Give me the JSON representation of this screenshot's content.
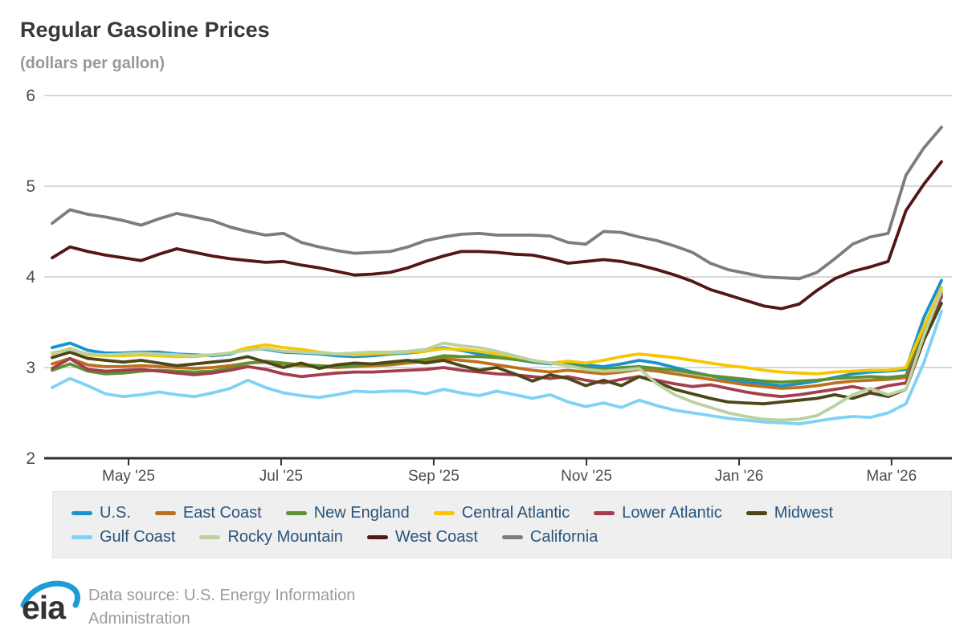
{
  "page": {
    "title": "Regular Gasoline Prices",
    "subtitle": "(dollars per gallon)"
  },
  "colors": {
    "grid": "#cccccc",
    "axis": "#2f2f2f",
    "axis_text": "#4c4c4c",
    "legend_text": "#29537b",
    "legend_bg": "#efefef",
    "logo_blue": "#1e9cd7"
  },
  "chart_data": {
    "type": "line",
    "title": "Regular Gasoline Prices",
    "ylabel": "(dollars per gallon)",
    "ylim": [
      2,
      6
    ],
    "yticks": [
      2,
      3,
      4,
      5,
      6
    ],
    "grid": "horizontal",
    "legend_position": "bottom",
    "x_unit": "weekly, Apr 2025 - Mar 2026",
    "x_ticks": [
      {
        "label": "May '25",
        "pos": 4.29
      },
      {
        "label": "Jul '25",
        "pos": 12.87
      },
      {
        "label": "Sep '25",
        "pos": 21.45
      },
      {
        "label": "Nov '25",
        "pos": 30.04
      },
      {
        "label": "Jan '26",
        "pos": 38.62
      },
      {
        "label": "Mar '26",
        "pos": 47.19
      }
    ],
    "series": [
      {
        "name": "U.S.",
        "color": "#1794ce",
        "values": [
          3.22,
          3.27,
          3.19,
          3.16,
          3.16,
          3.17,
          3.17,
          3.15,
          3.14,
          3.13,
          3.15,
          3.21,
          3.2,
          3.17,
          3.16,
          3.15,
          3.13,
          3.12,
          3.13,
          3.15,
          3.16,
          3.18,
          3.22,
          3.19,
          3.15,
          3.12,
          3.09,
          3.06,
          3.04,
          3.06,
          3.03,
          3.01,
          3.04,
          3.08,
          3.05,
          3.0,
          2.95,
          2.91,
          2.87,
          2.84,
          2.82,
          2.8,
          2.82,
          2.85,
          2.89,
          2.93,
          2.95,
          2.96,
          2.98,
          3.55,
          3.96
        ]
      },
      {
        "name": "East Coast",
        "color": "#bd711f",
        "values": [
          3.04,
          3.1,
          3.03,
          3.01,
          3.01,
          3.02,
          3.01,
          3.0,
          2.99,
          3.0,
          3.02,
          3.05,
          3.06,
          3.04,
          3.02,
          3.01,
          3.0,
          3.01,
          3.02,
          3.03,
          3.05,
          3.07,
          3.1,
          3.08,
          3.06,
          3.03,
          3.0,
          2.97,
          2.95,
          2.97,
          2.95,
          2.93,
          2.95,
          2.98,
          2.96,
          2.93,
          2.9,
          2.87,
          2.84,
          2.81,
          2.79,
          2.77,
          2.78,
          2.8,
          2.83,
          2.85,
          2.86,
          2.87,
          2.89,
          3.38,
          3.8
        ]
      },
      {
        "name": "New England",
        "color": "#5d9232",
        "values": [
          2.97,
          3.04,
          2.96,
          2.93,
          2.94,
          2.96,
          2.97,
          2.96,
          2.95,
          2.96,
          2.99,
          3.05,
          3.07,
          3.05,
          3.03,
          3.02,
          3.01,
          3.02,
          3.04,
          3.05,
          3.07,
          3.09,
          3.13,
          3.12,
          3.12,
          3.11,
          3.09,
          3.07,
          3.05,
          3.03,
          3.0,
          2.98,
          3.0,
          3.01,
          2.99,
          2.97,
          2.94,
          2.91,
          2.89,
          2.87,
          2.85,
          2.84,
          2.85,
          2.86,
          2.88,
          2.89,
          2.9,
          2.89,
          2.91,
          3.4,
          3.82
        ]
      },
      {
        "name": "Central Atlantic",
        "color": "#f7c600",
        "values": [
          3.15,
          3.21,
          3.14,
          3.13,
          3.13,
          3.14,
          3.13,
          3.12,
          3.12,
          3.14,
          3.16,
          3.22,
          3.25,
          3.22,
          3.2,
          3.17,
          3.15,
          3.14,
          3.15,
          3.16,
          3.17,
          3.18,
          3.21,
          3.2,
          3.18,
          3.15,
          3.12,
          3.08,
          3.05,
          3.07,
          3.05,
          3.08,
          3.12,
          3.15,
          3.13,
          3.11,
          3.08,
          3.05,
          3.02,
          3.0,
          2.97,
          2.95,
          2.94,
          2.93,
          2.95,
          2.96,
          2.97,
          2.97,
          3.0,
          3.45,
          3.88
        ]
      },
      {
        "name": "Lower Atlantic",
        "color": "#a63d4f",
        "values": [
          2.99,
          3.1,
          2.98,
          2.96,
          2.97,
          2.98,
          2.96,
          2.94,
          2.92,
          2.94,
          2.97,
          3.01,
          2.98,
          2.93,
          2.9,
          2.92,
          2.94,
          2.95,
          2.95,
          2.96,
          2.97,
          2.98,
          3.0,
          2.97,
          2.95,
          2.93,
          2.92,
          2.9,
          2.88,
          2.9,
          2.86,
          2.83,
          2.87,
          2.9,
          2.86,
          2.82,
          2.79,
          2.81,
          2.77,
          2.73,
          2.7,
          2.68,
          2.7,
          2.73,
          2.76,
          2.79,
          2.75,
          2.8,
          2.83,
          3.35,
          3.78
        ]
      },
      {
        "name": "Midwest",
        "color": "#4d4617",
        "values": [
          3.11,
          3.17,
          3.1,
          3.08,
          3.06,
          3.08,
          3.05,
          3.02,
          3.04,
          3.06,
          3.08,
          3.12,
          3.06,
          3.0,
          3.05,
          2.99,
          3.03,
          3.05,
          3.04,
          3.06,
          3.08,
          3.05,
          3.08,
          3.02,
          2.97,
          3.0,
          2.93,
          2.85,
          2.92,
          2.88,
          2.8,
          2.86,
          2.8,
          2.9,
          2.84,
          2.76,
          2.71,
          2.66,
          2.62,
          2.61,
          2.6,
          2.62,
          2.64,
          2.66,
          2.7,
          2.66,
          2.72,
          2.68,
          2.76,
          3.3,
          3.71
        ]
      },
      {
        "name": "Gulf Coast",
        "color": "#7fd2f3",
        "values": [
          2.78,
          2.88,
          2.8,
          2.71,
          2.68,
          2.7,
          2.73,
          2.7,
          2.68,
          2.72,
          2.77,
          2.86,
          2.78,
          2.72,
          2.69,
          2.67,
          2.7,
          2.74,
          2.73,
          2.74,
          2.74,
          2.71,
          2.76,
          2.72,
          2.69,
          2.74,
          2.7,
          2.66,
          2.7,
          2.62,
          2.57,
          2.61,
          2.56,
          2.64,
          2.58,
          2.53,
          2.5,
          2.47,
          2.44,
          2.42,
          2.4,
          2.39,
          2.38,
          2.41,
          2.44,
          2.46,
          2.45,
          2.5,
          2.6,
          3.05,
          3.62
        ]
      },
      {
        "name": "Rocky Mountain",
        "color": "#b9d2a0",
        "values": [
          3.16,
          3.2,
          3.15,
          3.14,
          3.15,
          3.16,
          3.15,
          3.14,
          3.13,
          3.14,
          3.16,
          3.19,
          3.21,
          3.18,
          3.17,
          3.16,
          3.15,
          3.16,
          3.17,
          3.17,
          3.18,
          3.2,
          3.27,
          3.24,
          3.22,
          3.18,
          3.13,
          3.08,
          3.05,
          3.02,
          2.98,
          2.96,
          2.97,
          2.99,
          2.82,
          2.7,
          2.62,
          2.56,
          2.5,
          2.46,
          2.43,
          2.42,
          2.43,
          2.47,
          2.58,
          2.7,
          2.77,
          2.7,
          2.76,
          3.35,
          3.85
        ]
      },
      {
        "name": "West Coast",
        "color": "#521716",
        "values": [
          4.21,
          4.33,
          4.28,
          4.24,
          4.21,
          4.18,
          4.25,
          4.31,
          4.27,
          4.23,
          4.2,
          4.18,
          4.16,
          4.17,
          4.13,
          4.1,
          4.06,
          4.02,
          4.03,
          4.05,
          4.1,
          4.17,
          4.23,
          4.28,
          4.28,
          4.27,
          4.25,
          4.24,
          4.2,
          4.15,
          4.17,
          4.19,
          4.17,
          4.13,
          4.08,
          4.02,
          3.95,
          3.86,
          3.8,
          3.74,
          3.68,
          3.65,
          3.7,
          3.85,
          3.98,
          4.06,
          4.11,
          4.17,
          4.73,
          5.02,
          5.27
        ]
      },
      {
        "name": "California",
        "color": "#7d7d7d",
        "values": [
          4.59,
          4.74,
          4.69,
          4.66,
          4.62,
          4.57,
          4.64,
          4.7,
          4.66,
          4.62,
          4.55,
          4.5,
          4.46,
          4.48,
          4.38,
          4.33,
          4.29,
          4.26,
          4.27,
          4.28,
          4.33,
          4.4,
          4.44,
          4.47,
          4.48,
          4.46,
          4.46,
          4.46,
          4.45,
          4.38,
          4.36,
          4.5,
          4.49,
          4.44,
          4.4,
          4.34,
          4.27,
          4.15,
          4.08,
          4.04,
          4.0,
          3.99,
          3.98,
          4.05,
          4.2,
          4.36,
          4.44,
          4.48,
          5.12,
          5.42,
          5.65
        ]
      }
    ]
  },
  "footer": {
    "logo_text": "eia",
    "source_line1": "Data source: U.S. Energy Information",
    "source_line2": "Administration"
  }
}
